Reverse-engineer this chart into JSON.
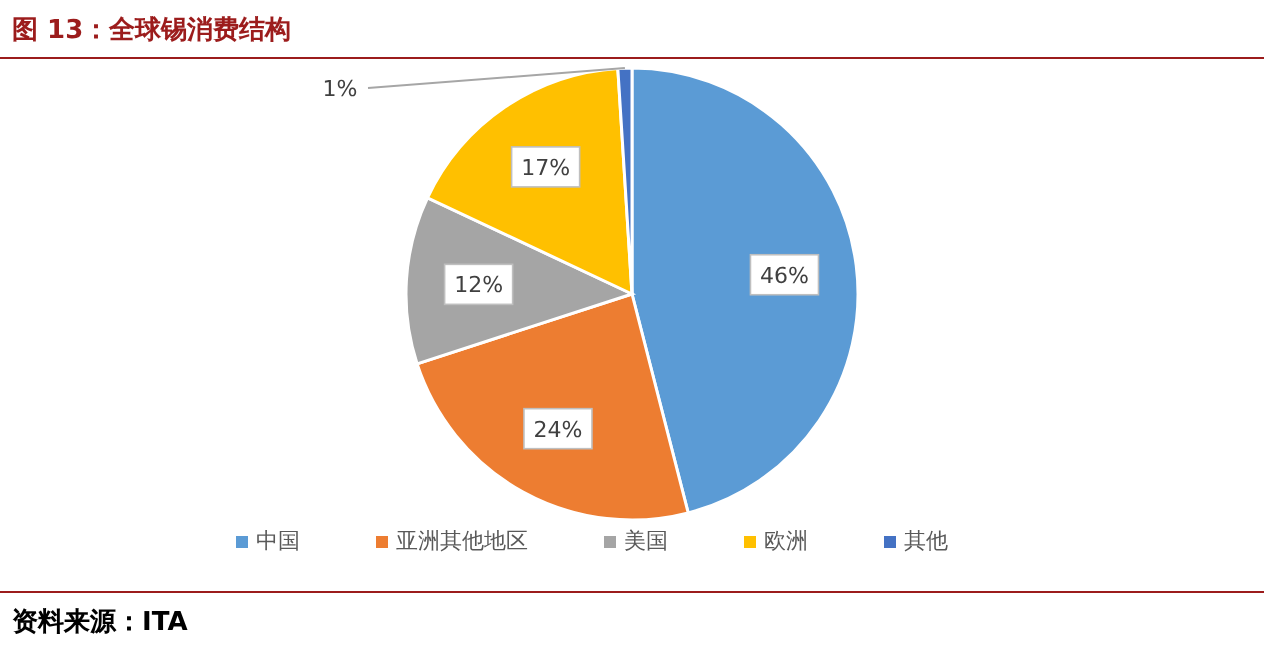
{
  "chart_data": {
    "type": "pie",
    "title": "图 13：全球锡消费结构",
    "categories": [
      "中国",
      "亚洲其他地区",
      "美国",
      "欧洲",
      "其他"
    ],
    "values": [
      46,
      24,
      12,
      17,
      1
    ],
    "value_labels": [
      "46%",
      "24%",
      "12%",
      "17%",
      "1%"
    ],
    "colors": [
      "#5b9bd5",
      "#ed7d31",
      "#a5a5a5",
      "#ffc000",
      "#4472c4"
    ],
    "legend": "bottom",
    "annotations": [
      "资料来源：ITA"
    ]
  }
}
